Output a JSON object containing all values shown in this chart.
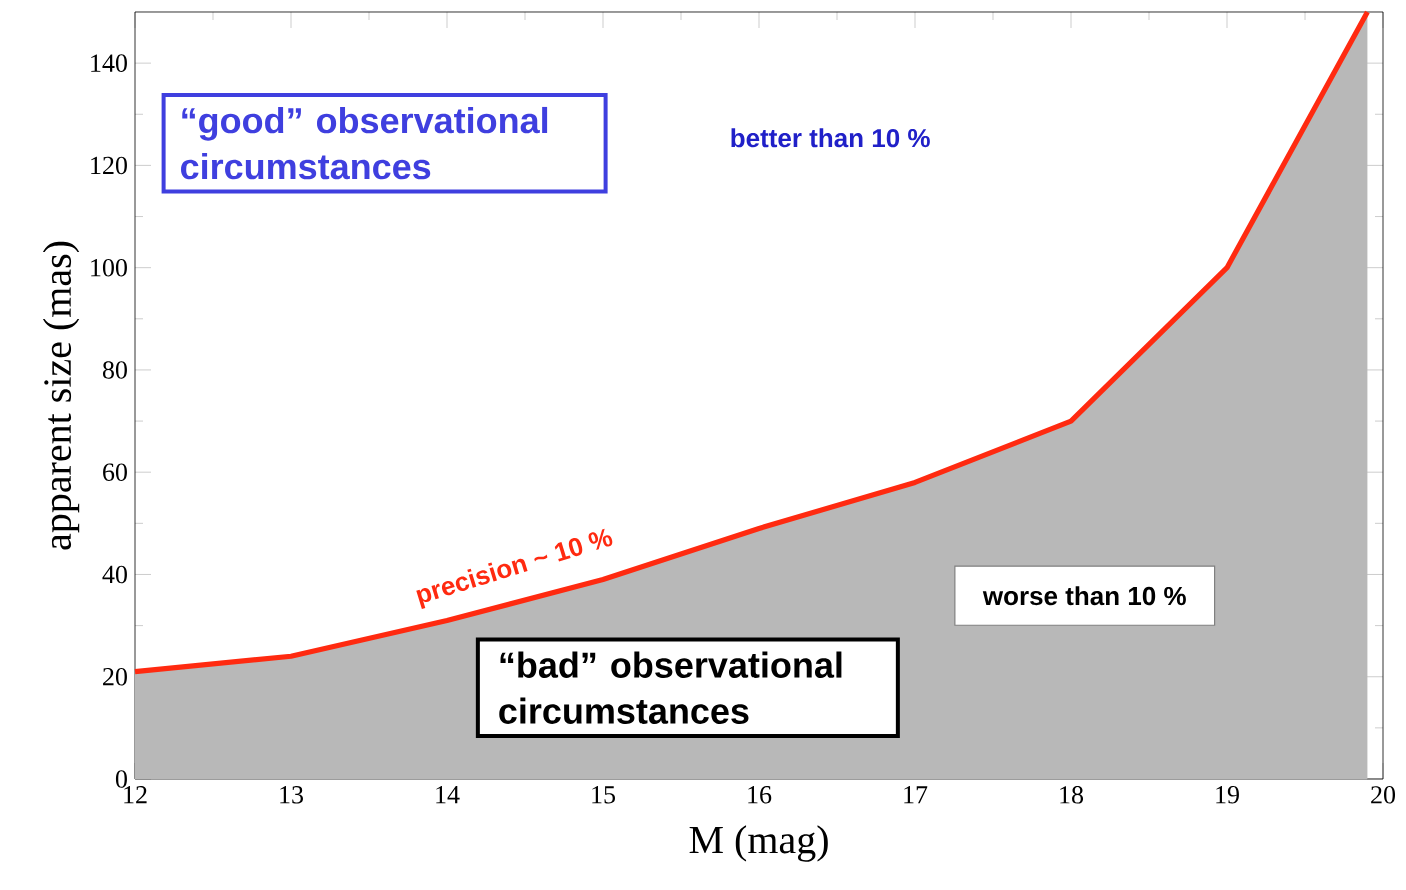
{
  "chart_data": {
    "type": "area",
    "xlabel": "M (mag)",
    "ylabel": "apparent size (mas)",
    "x": [
      12,
      13,
      14,
      15,
      16,
      17,
      18,
      19,
      19.9
    ],
    "values": [
      21,
      24,
      31,
      39,
      49,
      58,
      70,
      100,
      150
    ],
    "color": "#ff2a10",
    "xlim": [
      12,
      20
    ],
    "ylim": [
      0,
      150
    ],
    "xticks": [
      12,
      13,
      14,
      15,
      16,
      17,
      18,
      19,
      20
    ],
    "yticks": [
      0,
      20,
      40,
      60,
      80,
      100,
      120,
      140
    ],
    "annotations": [
      "“good” observational circumstances",
      "better than 10 %",
      "precision ~ 10 %",
      "worse than 10 %",
      "“bad” observational circumstances"
    ]
  }
}
